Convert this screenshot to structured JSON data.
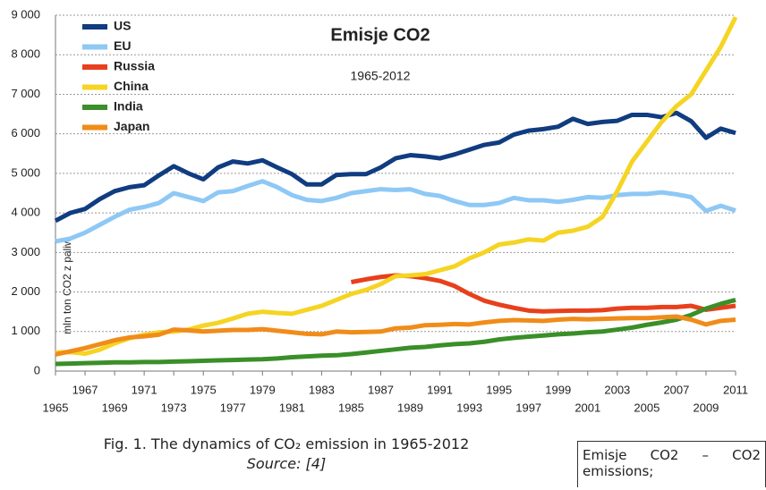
{
  "chart_data": {
    "type": "line",
    "title": "Emisje CO2",
    "subtitle": "1965-2012",
    "y_label": "mln ton CO2 z paliw",
    "x": [
      1965,
      1966,
      1967,
      1968,
      1969,
      1970,
      1971,
      1972,
      1973,
      1974,
      1975,
      1976,
      1977,
      1978,
      1979,
      1980,
      1981,
      1982,
      1983,
      1984,
      1985,
      1986,
      1987,
      1988,
      1989,
      1990,
      1991,
      1992,
      1993,
      1994,
      1995,
      1996,
      1997,
      1998,
      1999,
      2000,
      2001,
      2002,
      2003,
      2004,
      2005,
      2006,
      2007,
      2008,
      2009,
      2010,
      2011
    ],
    "series": [
      {
        "name": "US",
        "color": "#103c80",
        "values": [
          3800,
          4000,
          4100,
          4350,
          4550,
          4650,
          4700,
          4950,
          5180,
          5000,
          4850,
          5150,
          5300,
          5250,
          5330,
          5150,
          4980,
          4720,
          4720,
          4960,
          4980,
          4980,
          5150,
          5380,
          5460,
          5430,
          5380,
          5480,
          5600,
          5720,
          5780,
          5980,
          6080,
          6120,
          6180,
          6380,
          6250,
          6300,
          6330,
          6480,
          6480,
          6420,
          6530,
          6320,
          5900,
          6130,
          6020
        ]
      },
      {
        "name": "EU",
        "color": "#8ec8f5",
        "values": [
          3280,
          3350,
          3500,
          3700,
          3900,
          4080,
          4150,
          4250,
          4500,
          4400,
          4300,
          4520,
          4550,
          4680,
          4800,
          4650,
          4450,
          4330,
          4300,
          4380,
          4500,
          4550,
          4600,
          4580,
          4600,
          4480,
          4430,
          4300,
          4200,
          4200,
          4250,
          4380,
          4320,
          4320,
          4280,
          4330,
          4400,
          4380,
          4450,
          4480,
          4480,
          4520,
          4470,
          4400,
          4050,
          4180,
          4060
        ]
      },
      {
        "name": "Russia",
        "color": "#e8401c",
        "values": [
          null,
          null,
          null,
          null,
          null,
          null,
          null,
          null,
          null,
          null,
          null,
          null,
          null,
          null,
          null,
          null,
          null,
          null,
          null,
          null,
          2250,
          2320,
          2380,
          2420,
          2400,
          2350,
          2280,
          2150,
          1950,
          1780,
          1680,
          1600,
          1530,
          1510,
          1520,
          1530,
          1530,
          1540,
          1580,
          1600,
          1600,
          1620,
          1620,
          1650,
          1550,
          1600,
          1650
        ]
      },
      {
        "name": "China",
        "color": "#f5d423",
        "values": [
          470,
          480,
          440,
          540,
          700,
          830,
          920,
          980,
          1000,
          1050,
          1150,
          1220,
          1330,
          1450,
          1500,
          1470,
          1450,
          1550,
          1650,
          1800,
          1950,
          2050,
          2200,
          2400,
          2420,
          2450,
          2550,
          2650,
          2850,
          3000,
          3200,
          3250,
          3330,
          3300,
          3500,
          3550,
          3650,
          3900,
          4550,
          5300,
          5800,
          6300,
          6700,
          7000,
          7600,
          8200,
          8950
        ]
      },
      {
        "name": "India",
        "color": "#3a8f28",
        "values": [
          180,
          190,
          200,
          210,
          220,
          220,
          230,
          230,
          240,
          250,
          260,
          270,
          280,
          290,
          300,
          320,
          350,
          370,
          390,
          400,
          430,
          470,
          510,
          550,
          590,
          610,
          650,
          680,
          700,
          740,
          800,
          840,
          870,
          900,
          930,
          950,
          980,
          1000,
          1050,
          1100,
          1170,
          1230,
          1300,
          1420,
          1580,
          1700,
          1800
        ]
      },
      {
        "name": "Japan",
        "color": "#f08c1a",
        "values": [
          420,
          500,
          580,
          680,
          780,
          850,
          880,
          920,
          1050,
          1030,
          1000,
          1020,
          1040,
          1040,
          1060,
          1020,
          980,
          940,
          930,
          1000,
          980,
          990,
          1000,
          1080,
          1100,
          1160,
          1170,
          1190,
          1180,
          1230,
          1270,
          1290,
          1280,
          1270,
          1300,
          1320,
          1310,
          1320,
          1330,
          1340,
          1340,
          1360,
          1380,
          1300,
          1180,
          1270,
          1300
        ]
      }
    ],
    "xlim": [
      1965,
      2011
    ],
    "xticks": [
      1965,
      1967,
      1969,
      1971,
      1973,
      1975,
      1977,
      1979,
      1981,
      1983,
      1985,
      1987,
      1989,
      1991,
      1993,
      1995,
      1997,
      1999,
      2001,
      2003,
      2005,
      2007,
      2009,
      2011
    ],
    "ylim": [
      0,
      9000
    ],
    "yticks": [
      0,
      {
        "value": 1000,
        "label": "1 000"
      },
      {
        "value": 2000,
        "label": "2 000"
      },
      {
        "value": 3000,
        "label": "3 000"
      },
      {
        "value": 4000,
        "label": "4 000"
      },
      {
        "value": 5000,
        "label": "5 000"
      },
      {
        "value": 6000,
        "label": "6 000"
      },
      {
        "value": 7000,
        "label": "7 000"
      },
      {
        "value": 8000,
        "label": "8 000"
      },
      {
        "value": 9000,
        "label": "9 000"
      }
    ],
    "grid": true,
    "legend": "upper left"
  },
  "caption": {
    "text": "Fig. 1. The dynamics of CO₂ emission in 1965-2012",
    "source": "Source: [4]"
  },
  "note": "Emisje CO2 – CO2 emissions;"
}
